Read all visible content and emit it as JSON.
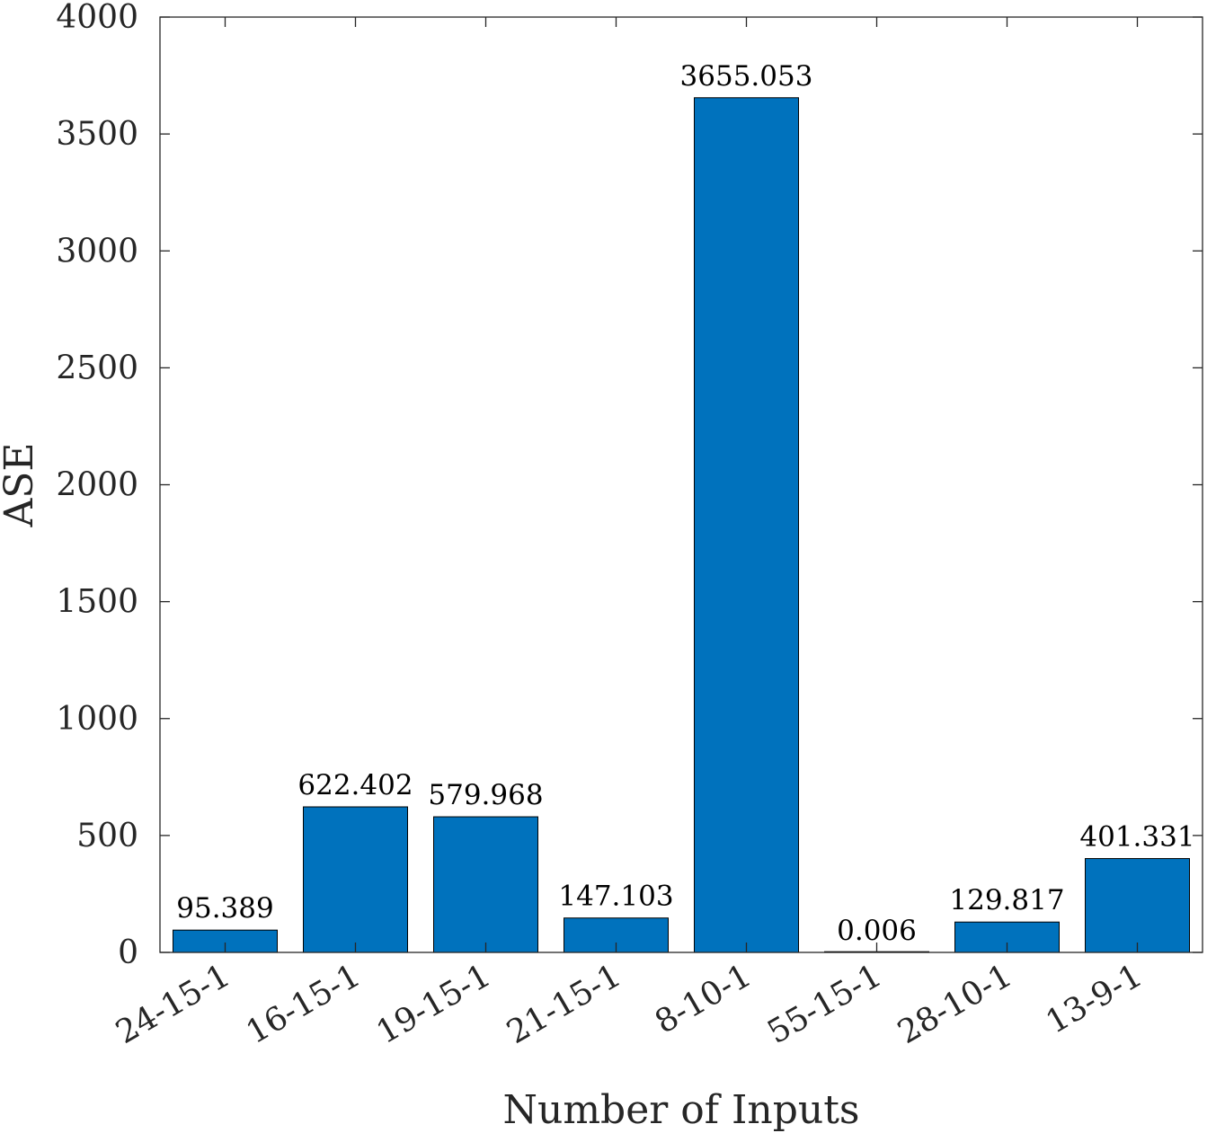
{
  "chart_data": {
    "type": "bar",
    "categories": [
      "24-15-1",
      "16-15-1",
      "19-15-1",
      "21-15-1",
      "8-10-1",
      "55-15-1",
      "28-10-1",
      "13-9-1"
    ],
    "values": [
      95.389,
      622.402,
      579.968,
      147.103,
      3655.053,
      0.006,
      129.817,
      401.331
    ],
    "data_labels": [
      "95.389",
      "622.402",
      "579.968",
      "147.103",
      "3655.053",
      "0.006",
      "129.817",
      "401.331"
    ],
    "title": "",
    "xlabel": "Number of Inputs",
    "ylabel": "ASE",
    "ylim": [
      0,
      4000
    ],
    "yticks": [
      0,
      500,
      1000,
      1500,
      2000,
      2500,
      3000,
      3500,
      4000
    ],
    "grid": false,
    "bar_color": "#0072BD",
    "axis_color": "#262626"
  }
}
